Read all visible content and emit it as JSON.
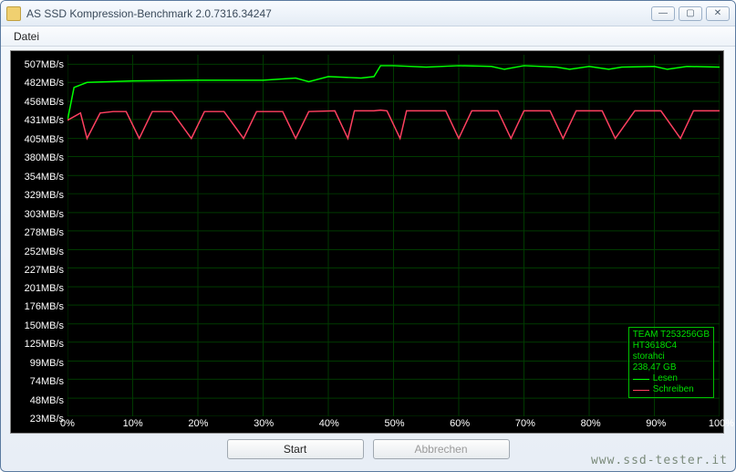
{
  "window": {
    "title": "AS SSD Kompression-Benchmark 2.0.7316.34247",
    "menu": {
      "datei": "Datei"
    },
    "buttons": {
      "minimize": "—",
      "maximize": "▢",
      "close": "✕"
    }
  },
  "watermark": "www.ssd-tester.it",
  "actions": {
    "start": "Start",
    "cancel": "Abbrechen"
  },
  "chart": {
    "type": "line",
    "background_color": "#000000",
    "grid_color": "#003a00",
    "text_color": "#ffffff",
    "y_unit": "MB/s",
    "y_ticks": [
      507,
      482,
      456,
      431,
      405,
      380,
      354,
      329,
      303,
      278,
      252,
      227,
      201,
      176,
      150,
      125,
      99,
      74,
      48,
      23
    ],
    "ylim": [
      23,
      520
    ],
    "x_ticks": [
      0,
      10,
      20,
      30,
      40,
      50,
      60,
      70,
      80,
      90,
      100
    ],
    "x_unit": "%",
    "xlim": [
      0,
      100
    ],
    "legend": {
      "border_color": "#00c000",
      "lines": [
        "TEAM T253256GB",
        "HT3618C4",
        "storahci",
        "238,47 GB"
      ],
      "entries": [
        {
          "label": "Lesen",
          "color": "#00ff00"
        },
        {
          "label": "Schreiben",
          "color": "#ff4060"
        }
      ]
    },
    "series": [
      {
        "name": "Lesen",
        "color": "#00ff00",
        "line_width": 1.5,
        "points": [
          [
            0,
            430
          ],
          [
            1,
            475
          ],
          [
            3,
            482
          ],
          [
            10,
            484
          ],
          [
            20,
            485
          ],
          [
            30,
            485
          ],
          [
            35,
            488
          ],
          [
            37,
            483
          ],
          [
            40,
            490
          ],
          [
            45,
            488
          ],
          [
            47,
            490
          ],
          [
            48,
            505
          ],
          [
            50,
            505
          ],
          [
            55,
            503
          ],
          [
            60,
            505
          ],
          [
            65,
            504
          ],
          [
            67,
            500
          ],
          [
            70,
            505
          ],
          [
            75,
            503
          ],
          [
            77,
            500
          ],
          [
            80,
            504
          ],
          [
            83,
            500
          ],
          [
            85,
            503
          ],
          [
            90,
            504
          ],
          [
            92,
            500
          ],
          [
            95,
            504
          ],
          [
            100,
            503
          ]
        ]
      },
      {
        "name": "Schreiben",
        "color": "#ff4060",
        "line_width": 1.5,
        "points": [
          [
            0,
            430
          ],
          [
            2,
            440
          ],
          [
            3,
            405
          ],
          [
            5,
            440
          ],
          [
            7,
            442
          ],
          [
            9,
            442
          ],
          [
            11,
            405
          ],
          [
            13,
            442
          ],
          [
            16,
            442
          ],
          [
            19,
            405
          ],
          [
            21,
            442
          ],
          [
            24,
            442
          ],
          [
            27,
            405
          ],
          [
            29,
            442
          ],
          [
            33,
            442
          ],
          [
            35,
            405
          ],
          [
            37,
            442
          ],
          [
            41,
            443
          ],
          [
            43,
            405
          ],
          [
            44,
            443
          ],
          [
            46,
            443
          ],
          [
            47,
            443
          ],
          [
            48,
            444
          ],
          [
            49,
            443
          ],
          [
            51,
            405
          ],
          [
            52,
            443
          ],
          [
            55,
            443
          ],
          [
            58,
            443
          ],
          [
            60,
            405
          ],
          [
            62,
            443
          ],
          [
            66,
            443
          ],
          [
            68,
            405
          ],
          [
            70,
            443
          ],
          [
            74,
            443
          ],
          [
            76,
            405
          ],
          [
            78,
            443
          ],
          [
            82,
            443
          ],
          [
            84,
            405
          ],
          [
            87,
            443
          ],
          [
            91,
            443
          ],
          [
            94,
            405
          ],
          [
            96,
            443
          ],
          [
            100,
            443
          ]
        ]
      }
    ]
  }
}
